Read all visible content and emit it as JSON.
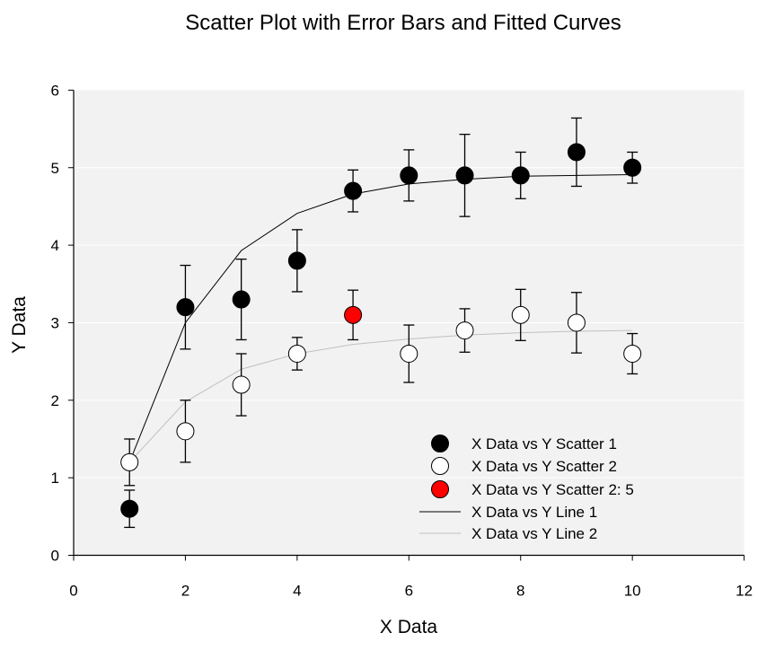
{
  "chart_data": {
    "type": "scatter",
    "title": "Scatter Plot with Error Bars and Fitted Curves",
    "xlabel": "X Data",
    "ylabel": "Y Data",
    "xlim": [
      0,
      12
    ],
    "ylim": [
      0,
      6
    ],
    "xticks": [
      "0",
      "2",
      "4",
      "6",
      "8",
      "10",
      "12"
    ],
    "yticks": [
      "0",
      "1",
      "2",
      "3",
      "4",
      "5",
      "6"
    ],
    "grid": "horizontal",
    "legend_position": "bottom-right",
    "plot_background": "#f2f2f2",
    "scatter": [
      {
        "name": "X Data vs Y Scatter 1",
        "fill": "#000000",
        "x": [
          1,
          2,
          3,
          4,
          5,
          6,
          7,
          8,
          9,
          10
        ],
        "y": [
          0.6,
          3.2,
          3.3,
          3.8,
          4.7,
          4.9,
          4.9,
          4.9,
          5.2,
          5.0
        ],
        "err": [
          0.24,
          0.54,
          0.52,
          0.4,
          0.27,
          0.33,
          0.53,
          0.3,
          0.44,
          0.2
        ]
      },
      {
        "name": "X Data vs Y Scatter 2",
        "fill": "#ffffff",
        "x": [
          1,
          2,
          3,
          4,
          5,
          6,
          7,
          8,
          9,
          10
        ],
        "y": [
          1.2,
          1.6,
          2.2,
          2.6,
          3.1,
          2.6,
          2.9,
          3.1,
          3.0,
          2.6
        ],
        "err": [
          0.3,
          0.4,
          0.4,
          0.21,
          0.32,
          0.37,
          0.28,
          0.33,
          0.39,
          0.26
        ],
        "highlight_index": 4,
        "highlight_fill": "#ff0000",
        "highlight_name": "X Data vs Y Scatter 2: 5"
      }
    ],
    "lines": [
      {
        "name": "X Data vs Y Line 1",
        "color": "#000000",
        "x": [
          1,
          2,
          3,
          4,
          5,
          6,
          7,
          8,
          9,
          10
        ],
        "y": [
          1.2,
          3.0,
          3.93,
          4.41,
          4.66,
          4.79,
          4.85,
          4.89,
          4.9,
          4.91
        ]
      },
      {
        "name": "X Data vs Y Line 2",
        "color": "#c0c0c0",
        "x": [
          1,
          2,
          3,
          4,
          5,
          6,
          7,
          8,
          9,
          10
        ],
        "y": [
          1.2,
          1.98,
          2.4,
          2.6,
          2.72,
          2.79,
          2.84,
          2.87,
          2.89,
          2.9
        ]
      }
    ],
    "legend": [
      {
        "label": "X Data vs Y Scatter 1",
        "kind": "marker",
        "fill": "#000000"
      },
      {
        "label": "X Data vs Y Scatter 2",
        "kind": "marker",
        "fill": "#ffffff"
      },
      {
        "label": "X Data vs Y Scatter 2: 5",
        "kind": "marker",
        "fill": "#ff0000"
      },
      {
        "label": "X Data vs Y Line 1",
        "kind": "line",
        "color": "#000000"
      },
      {
        "label": "X Data vs Y Line 2",
        "kind": "line",
        "color": "#c0c0c0"
      }
    ]
  }
}
